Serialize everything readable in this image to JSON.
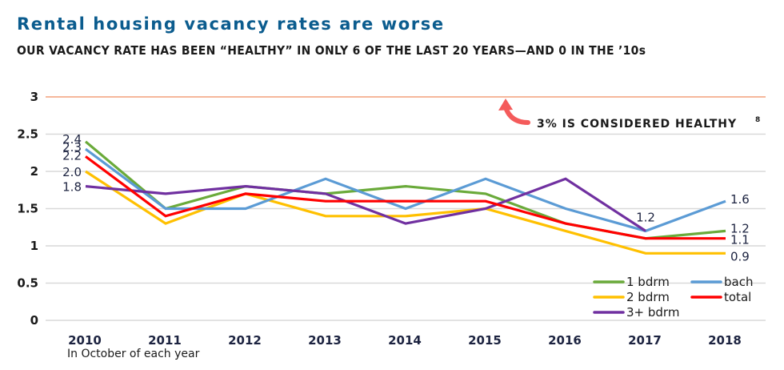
{
  "header": {
    "title": "Rental housing vacancy rates are worse",
    "subtitle": "OUR VACANCY RATE HAS BEEN “HEALTHY” IN ONLY 6 OF THE LAST 20 YEARS—AND 0 IN THE ’10s"
  },
  "chart_data": {
    "type": "line",
    "title": "Rental housing vacancy rates are worse",
    "subtitle": "OUR VACANCY RATE HAS BEEN “HEALTHY” IN ONLY 6 OF THE LAST 20 YEARS—AND 0 IN THE ’10s",
    "xlabel": "In October of each year",
    "ylabel": "",
    "x": [
      "2010",
      "2011",
      "2012",
      "2013",
      "2014",
      "2015",
      "2016",
      "2017",
      "2018"
    ],
    "ylim": [
      0,
      3
    ],
    "yticks": [
      "0",
      "0.5",
      "1",
      "1.5",
      "2",
      "2.5",
      "3"
    ],
    "grid": true,
    "legend_position": "bottom-right",
    "reference_line": {
      "value": 3,
      "color": "#f4a07c",
      "annotation": "3% IS CONSIDERED HEALTHY",
      "footnote": "8"
    },
    "series": [
      {
        "name": "1 bdrm",
        "color": "#6aaa3a",
        "values": [
          2.4,
          1.5,
          1.8,
          1.7,
          1.8,
          1.7,
          1.3,
          1.1,
          1.2
        ],
        "start_label": "2.4",
        "end_label": "1.2"
      },
      {
        "name": "bach",
        "color": "#5b9bd5",
        "values": [
          2.3,
          1.5,
          1.5,
          1.9,
          1.5,
          1.9,
          1.5,
          1.2,
          1.6
        ],
        "start_label": "2.3",
        "end_label": "1.6"
      },
      {
        "name": "total",
        "color": "#ff0000",
        "values": [
          2.2,
          1.4,
          1.7,
          1.6,
          1.6,
          1.6,
          1.3,
          1.1,
          1.1
        ],
        "start_label": "2.2",
        "end_label": "1.1"
      },
      {
        "name": "2 bdrm",
        "color": "#ffc000",
        "values": [
          2.0,
          1.3,
          1.7,
          1.4,
          1.4,
          1.5,
          1.2,
          0.9,
          0.9
        ],
        "start_label": "2.0",
        "end_label": "0.9"
      },
      {
        "name": "3+ bdrm",
        "color": "#7030a0",
        "values": [
          1.8,
          1.7,
          1.8,
          1.7,
          1.3,
          1.5,
          1.9,
          1.2,
          null
        ],
        "start_label": "1.8",
        "end_label": "1.2"
      }
    ]
  }
}
